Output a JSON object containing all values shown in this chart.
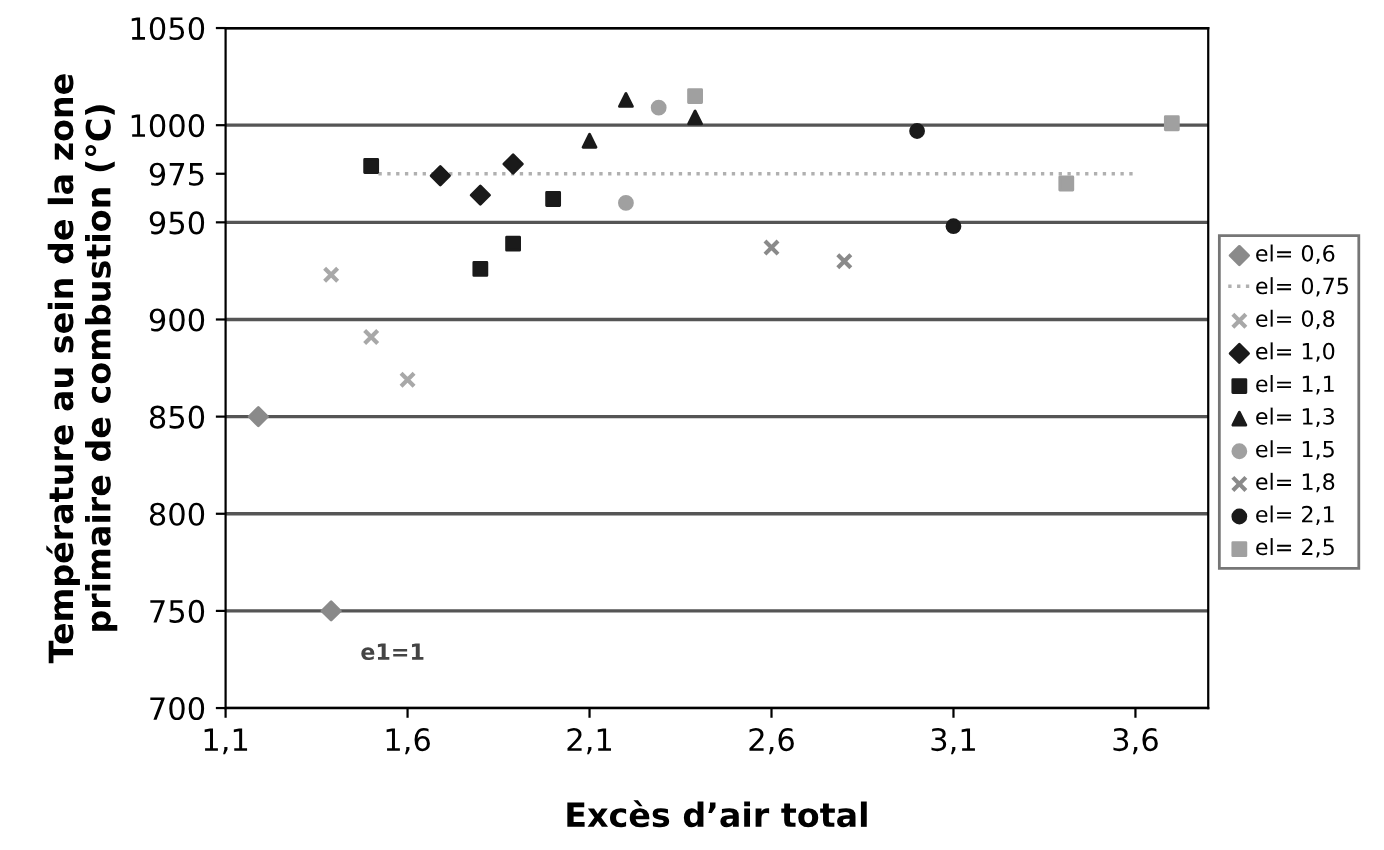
{
  "chart_data": {
    "type": "scatter",
    "xlabel": "Excès d’air total",
    "ylabel": "Température au sein de la zone\nprimaire de combustion (°C)",
    "xlim": [
      1.1,
      3.8
    ],
    "xticks": [
      {
        "value": 1.1,
        "label": "1,1"
      },
      {
        "value": 1.6,
        "label": "1,6"
      },
      {
        "value": 2.1,
        "label": "2,1"
      },
      {
        "value": 2.6,
        "label": "2,6"
      },
      {
        "value": 3.1,
        "label": "3,1"
      },
      {
        "value": 3.6,
        "label": "3,6"
      }
    ],
    "ylim": [
      700,
      1050
    ],
    "yticks": [
      700,
      750,
      800,
      850,
      900,
      950,
      {
        "value": 975,
        "label": "975"
      },
      1000,
      1050
    ],
    "grid": "y",
    "legend": "right",
    "annotations": [
      "e1=1"
    ],
    "series": [
      {
        "name": "el= 0,6",
        "color": "#8a8a8a",
        "marker": "diamond",
        "x": [
          1.19,
          1.39
        ],
        "values": [
          850,
          750
        ]
      },
      {
        "name": "el= 0,75",
        "color": "#b0b0b0",
        "type": "line",
        "line_style": "dotted",
        "marker": "none",
        "x": [
          1.52,
          1.7,
          2.15,
          2.44,
          2.86,
          3.15,
          3.6
        ],
        "values": [
          975,
          975,
          975,
          975,
          975,
          975,
          975
        ]
      },
      {
        "name": "el= 0,8",
        "color": "#a8a8a8",
        "marker": "cross",
        "x": [
          1.39,
          1.5,
          1.6
        ],
        "values": [
          923,
          891,
          869
        ]
      },
      {
        "name": "el= 1,0",
        "color": "#1a1a1a",
        "marker": "diamond",
        "x": [
          1.69,
          1.8,
          1.89
        ],
        "values": [
          974,
          964,
          980
        ]
      },
      {
        "name": "el= 1,1",
        "color": "#1a1a1a",
        "marker": "square",
        "x": [
          1.5,
          1.8,
          1.89,
          2.0
        ],
        "values": [
          979,
          926,
          939,
          962
        ]
      },
      {
        "name": "el= 1,3",
        "color": "#1a1a1a",
        "marker": "triangle",
        "x": [
          2.1,
          2.2,
          2.39
        ],
        "values": [
          992,
          1013,
          1004
        ]
      },
      {
        "name": "el= 1,5",
        "color": "#a0a0a0",
        "marker": "circle",
        "x": [
          2.2,
          2.29
        ],
        "values": [
          960,
          1009
        ]
      },
      {
        "name": "el= 1,8",
        "color": "#8a8a8a",
        "marker": "cross",
        "x": [
          2.6,
          2.8
        ],
        "values": [
          937,
          930
        ]
      },
      {
        "name": "el= 2,1",
        "color": "#1a1a1a",
        "marker": "circle",
        "x": [
          3.0,
          3.1
        ],
        "values": [
          997,
          948
        ]
      },
      {
        "name": "el= 2,5",
        "color": "#a0a0a0",
        "marker": "square",
        "x": [
          2.39,
          3.41,
          3.7
        ],
        "values": [
          1015,
          970,
          1001
        ]
      }
    ]
  }
}
